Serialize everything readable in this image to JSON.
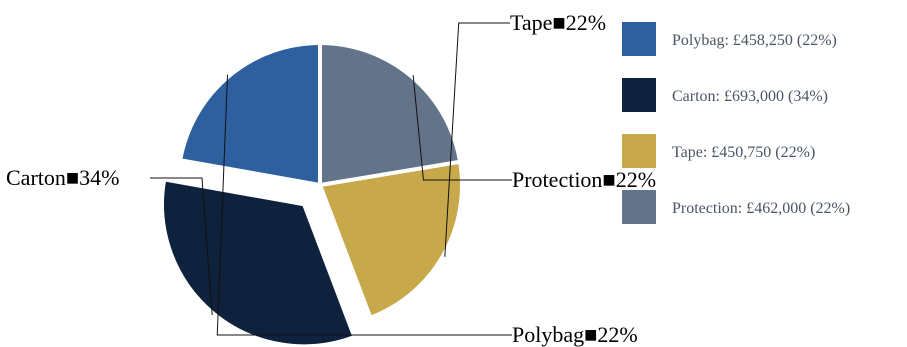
{
  "chart_data": {
    "type": "pie",
    "title": "",
    "categories": [
      "Polybag",
      "Carton",
      "Tape",
      "Protection"
    ],
    "values": [
      458250,
      693000,
      450750,
      462000
    ],
    "percent_labels": [
      "22%",
      "34%",
      "22%",
      "22%"
    ],
    "callout_labels": [
      "Polybag■22%",
      "Carton■34%",
      "Tape■22%",
      "Protection■22%"
    ],
    "legend": {
      "position": "right",
      "entries": [
        "Polybag: £458,250 (22%)",
        "Carton: £693,000 (34%)",
        "Tape: £450,750 (22%)",
        "Protection: £462,000 (22%)"
      ]
    },
    "colors": [
      "#2e5f9e",
      "#0e213d",
      "#c7a84b",
      "#63738a"
    ],
    "exploded": [
      false,
      true,
      false,
      false
    ],
    "start_angle_deg": 270,
    "direction": "counter-clockwise"
  }
}
